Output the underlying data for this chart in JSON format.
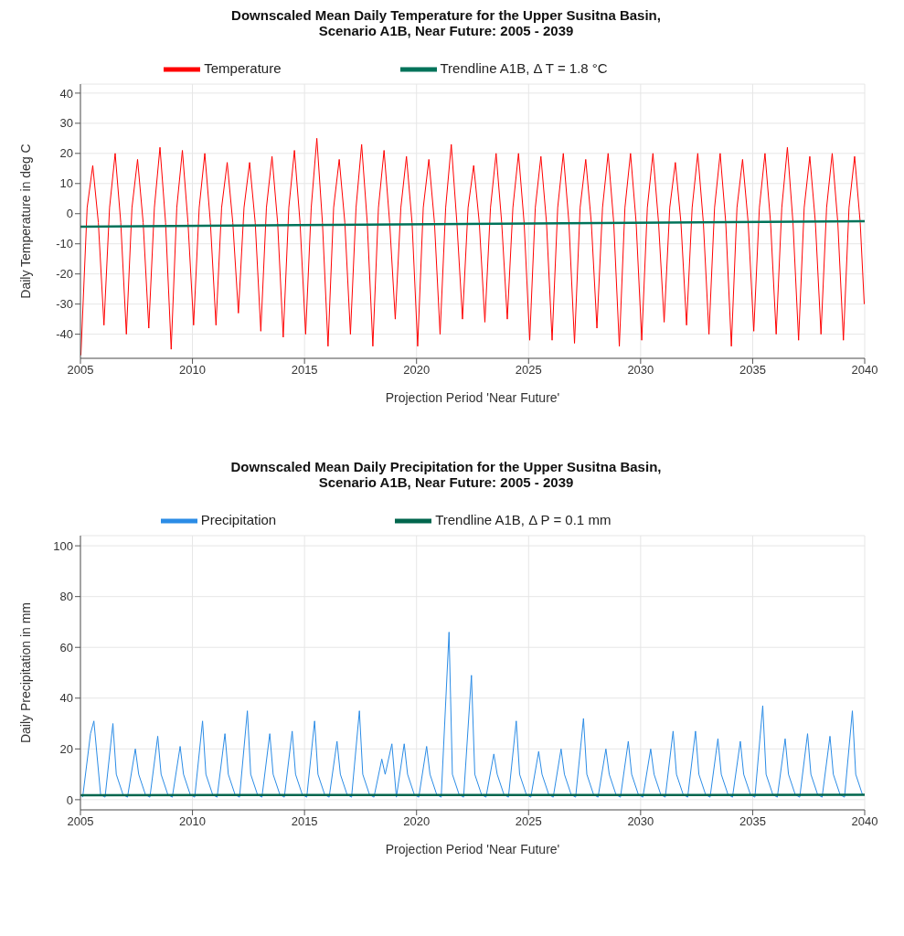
{
  "chart_data": [
    {
      "type": "line",
      "title": "Downscaled Mean Daily Temperature for the Upper Susitna Basin,\nScenario A1B, Near Future: 2005 - 2039",
      "xlabel": "Projection Period 'Near Future'",
      "ylabel": "Daily Temperature in deg C",
      "xlim": [
        2005,
        2040
      ],
      "ylim": [
        -48,
        43
      ],
      "xticks": [
        2005,
        2010,
        2015,
        2020,
        2025,
        2030,
        2035,
        2040
      ],
      "yticks": [
        -40,
        -30,
        -20,
        -10,
        0,
        10,
        20,
        30,
        40
      ],
      "grid": true,
      "legend": "top",
      "series": [
        {
          "name": "Temperature",
          "color": "#ff0000",
          "x": [
            2005.02,
            2005.3,
            2005.55,
            2005.8,
            2006.05,
            2006.3,
            2006.55,
            2006.8,
            2007.05,
            2007.3,
            2007.55,
            2007.8,
            2008.05,
            2008.3,
            2008.55,
            2008.8,
            2009.05,
            2009.3,
            2009.55,
            2009.8,
            2010.05,
            2010.3,
            2010.55,
            2010.8,
            2011.05,
            2011.3,
            2011.55,
            2011.8,
            2012.05,
            2012.3,
            2012.55,
            2012.8,
            2013.05,
            2013.3,
            2013.55,
            2013.8,
            2014.05,
            2014.3,
            2014.55,
            2014.8,
            2015.05,
            2015.3,
            2015.55,
            2015.8,
            2016.05,
            2016.3,
            2016.55,
            2016.8,
            2017.05,
            2017.3,
            2017.55,
            2017.8,
            2018.05,
            2018.3,
            2018.55,
            2018.8,
            2019.05,
            2019.3,
            2019.55,
            2019.8,
            2020.05,
            2020.3,
            2020.55,
            2020.8,
            2021.05,
            2021.3,
            2021.55,
            2021.8,
            2022.05,
            2022.3,
            2022.55,
            2022.8,
            2023.05,
            2023.3,
            2023.55,
            2023.8,
            2024.05,
            2024.3,
            2024.55,
            2024.8,
            2025.05,
            2025.3,
            2025.55,
            2025.8,
            2026.05,
            2026.3,
            2026.55,
            2026.8,
            2027.05,
            2027.3,
            2027.55,
            2027.8,
            2028.05,
            2028.3,
            2028.55,
            2028.8,
            2029.05,
            2029.3,
            2029.55,
            2029.8,
            2030.05,
            2030.3,
            2030.55,
            2030.8,
            2031.05,
            2031.3,
            2031.55,
            2031.8,
            2032.05,
            2032.3,
            2032.55,
            2032.8,
            2033.05,
            2033.3,
            2033.55,
            2033.8,
            2034.05,
            2034.3,
            2034.55,
            2034.8,
            2035.05,
            2035.3,
            2035.55,
            2035.8,
            2036.05,
            2036.3,
            2036.55,
            2036.8,
            2037.05,
            2037.3,
            2037.55,
            2037.8,
            2038.05,
            2038.3,
            2038.55,
            2038.8,
            2039.05,
            2039.3,
            2039.55,
            2039.8,
            2039.98
          ],
          "values": [
            -47,
            2,
            16,
            -3,
            -37,
            2,
            20,
            -3,
            -40,
            2,
            18,
            -3,
            -38,
            2,
            22,
            -3,
            -45,
            2,
            21,
            -3,
            -37,
            2,
            20,
            -3,
            -37,
            2,
            17,
            -3,
            -33,
            2,
            17,
            -3,
            -39,
            2,
            19,
            -3,
            -41,
            2,
            21,
            -3,
            -40,
            2,
            25,
            -3,
            -44,
            2,
            18,
            -3,
            -40,
            2,
            23,
            -3,
            -44,
            2,
            21,
            -3,
            -35,
            2,
            19,
            -3,
            -44,
            2,
            18,
            -3,
            -40,
            2,
            23,
            -3,
            -35,
            2,
            16,
            -3,
            -36,
            2,
            20,
            -3,
            -35,
            2,
            20,
            -3,
            -42,
            2,
            19,
            -3,
            -42,
            2,
            20,
            -3,
            -43,
            2,
            18,
            -3,
            -38,
            2,
            20,
            -3,
            -44,
            2,
            20,
            -3,
            -42,
            2,
            20,
            -3,
            -36,
            2,
            17,
            -3,
            -37,
            2,
            20,
            -3,
            -40,
            2,
            20,
            -3,
            -44,
            2,
            18,
            -3,
            -39,
            2,
            20,
            -3,
            -40,
            2,
            22,
            -3,
            -42,
            2,
            19,
            -3,
            -40,
            2,
            20,
            -3,
            -42,
            2,
            19,
            -3,
            -30
          ]
        },
        {
          "name": "Trendline A1B, Δ T =  1.8 °C",
          "color": "#00735a",
          "x": [
            2005,
            2040
          ],
          "values": [
            -4.3,
            -2.5
          ]
        }
      ]
    },
    {
      "type": "line",
      "title": "Downscaled Mean Daily Precipitation for the Upper Susitna Basin,\nScenario A1B, Near Future: 2005 - 2039",
      "xlabel": "Projection Period 'Near Future'",
      "ylabel": "Daily Precipitation in mm",
      "xlim": [
        2005,
        2040
      ],
      "ylim": [
        -4,
        104
      ],
      "xticks": [
        2005,
        2010,
        2015,
        2020,
        2025,
        2030,
        2035,
        2040
      ],
      "yticks": [
        0,
        20,
        40,
        60,
        80,
        100
      ],
      "grid": true,
      "legend": "top",
      "series": [
        {
          "name": "Precipitation",
          "color": "#2b8ce6",
          "x": [
            2005.1,
            2005.45,
            2005.6,
            2005.9,
            2006.1,
            2006.45,
            2006.6,
            2006.9,
            2007.1,
            2007.45,
            2007.6,
            2007.9,
            2008.1,
            2008.45,
            2008.6,
            2008.9,
            2009.1,
            2009.45,
            2009.6,
            2009.9,
            2010.1,
            2010.45,
            2010.6,
            2010.9,
            2011.1,
            2011.45,
            2011.6,
            2011.9,
            2012.1,
            2012.45,
            2012.6,
            2012.9,
            2013.1,
            2013.45,
            2013.6,
            2013.9,
            2014.1,
            2014.45,
            2014.6,
            2014.9,
            2015.1,
            2015.45,
            2015.6,
            2015.9,
            2016.1,
            2016.45,
            2016.6,
            2016.9,
            2017.1,
            2017.45,
            2017.6,
            2017.9,
            2018.1,
            2018.45,
            2018.6,
            2018.9,
            2019.1,
            2019.45,
            2019.6,
            2019.9,
            2020.1,
            2020.45,
            2020.6,
            2020.9,
            2021.1,
            2021.45,
            2021.6,
            2021.9,
            2022.1,
            2022.45,
            2022.6,
            2022.9,
            2023.1,
            2023.45,
            2023.6,
            2023.9,
            2024.1,
            2024.45,
            2024.6,
            2024.9,
            2025.1,
            2025.45,
            2025.6,
            2025.9,
            2026.1,
            2026.45,
            2026.6,
            2026.9,
            2027.1,
            2027.45,
            2027.6,
            2027.9,
            2028.1,
            2028.45,
            2028.6,
            2028.9,
            2029.1,
            2029.45,
            2029.6,
            2029.9,
            2030.1,
            2030.45,
            2030.6,
            2030.9,
            2031.1,
            2031.45,
            2031.6,
            2031.9,
            2032.1,
            2032.45,
            2032.6,
            2032.9,
            2033.1,
            2033.45,
            2033.6,
            2033.9,
            2034.1,
            2034.45,
            2034.6,
            2034.9,
            2035.1,
            2035.45,
            2035.6,
            2035.9,
            2036.1,
            2036.45,
            2036.6,
            2036.9,
            2037.1,
            2037.45,
            2037.6,
            2037.9,
            2038.1,
            2038.45,
            2038.6,
            2038.9,
            2039.1,
            2039.45,
            2039.6,
            2039.9
          ],
          "values": [
            1,
            26,
            31,
            2,
            1,
            30,
            10,
            2,
            1,
            20,
            10,
            2,
            1,
            25,
            10,
            2,
            1,
            21,
            10,
            2,
            1,
            31,
            10,
            2,
            1,
            26,
            10,
            2,
            1,
            35,
            10,
            2,
            1,
            26,
            10,
            2,
            1,
            27,
            10,
            2,
            1,
            31,
            10,
            2,
            1,
            23,
            10,
            2,
            1,
            35,
            10,
            2,
            1,
            16,
            10,
            22,
            1,
            22,
            10,
            2,
            1,
            21,
            10,
            2,
            1,
            66,
            10,
            2,
            1,
            49,
            10,
            2,
            1,
            18,
            10,
            2,
            1,
            31,
            10,
            2,
            1,
            19,
            10,
            2,
            1,
            20,
            10,
            2,
            1,
            32,
            10,
            2,
            1,
            20,
            10,
            2,
            1,
            23,
            10,
            2,
            1,
            20,
            10,
            2,
            1,
            27,
            10,
            2,
            1,
            27,
            10,
            2,
            1,
            24,
            10,
            2,
            1,
            23,
            10,
            2,
            1,
            37,
            10,
            2,
            1,
            24,
            10,
            2,
            1,
            26,
            10,
            2,
            1,
            25,
            10,
            2,
            1,
            35,
            10,
            2
          ]
        },
        {
          "name": "Trendline A1B, Δ P =  0.1 mm",
          "color": "#00664d",
          "x": [
            2005,
            2040
          ],
          "values": [
            1.8,
            1.9
          ]
        }
      ]
    }
  ]
}
